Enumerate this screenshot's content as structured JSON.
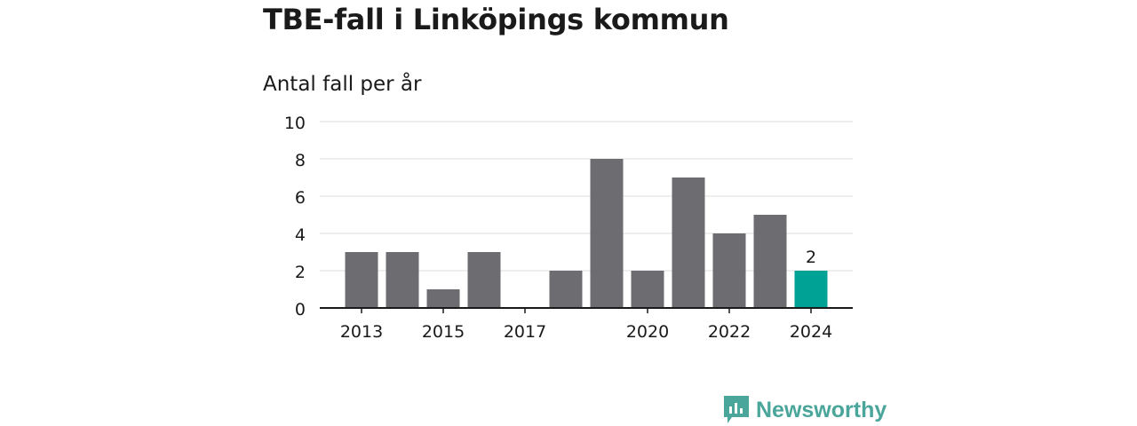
{
  "title": "TBE-fall i Linköpings kommun",
  "chart_data": {
    "type": "bar",
    "title": "TBE-fall i Linköpings kommun",
    "subtitle": "Antal fall per år",
    "xlabel": "",
    "ylabel": "",
    "categories": [
      "2013",
      "2014",
      "2015",
      "2016",
      "2017",
      "2018",
      "2019",
      "2020",
      "2021",
      "2022",
      "2023",
      "2024"
    ],
    "values": [
      3,
      3,
      1,
      3,
      0,
      2,
      8,
      2,
      7,
      4,
      5,
      2
    ],
    "x_tick_labels": [
      "2013",
      "2015",
      "2017",
      "2020",
      "2022",
      "2024"
    ],
    "y_ticks": [
      0,
      2,
      4,
      6,
      8,
      10
    ],
    "ylim": [
      0,
      10
    ],
    "grid": true,
    "highlight_category": "2024",
    "highlight_label": "2",
    "colors": {
      "bar": "#6d6c71",
      "highlight": "#00a296",
      "grid": "#dddddd",
      "axis": "#1a1a1a"
    }
  },
  "brand": {
    "name": "Newsworthy",
    "icon": "newsworthy-logo-icon",
    "color": "#4aa59a"
  }
}
